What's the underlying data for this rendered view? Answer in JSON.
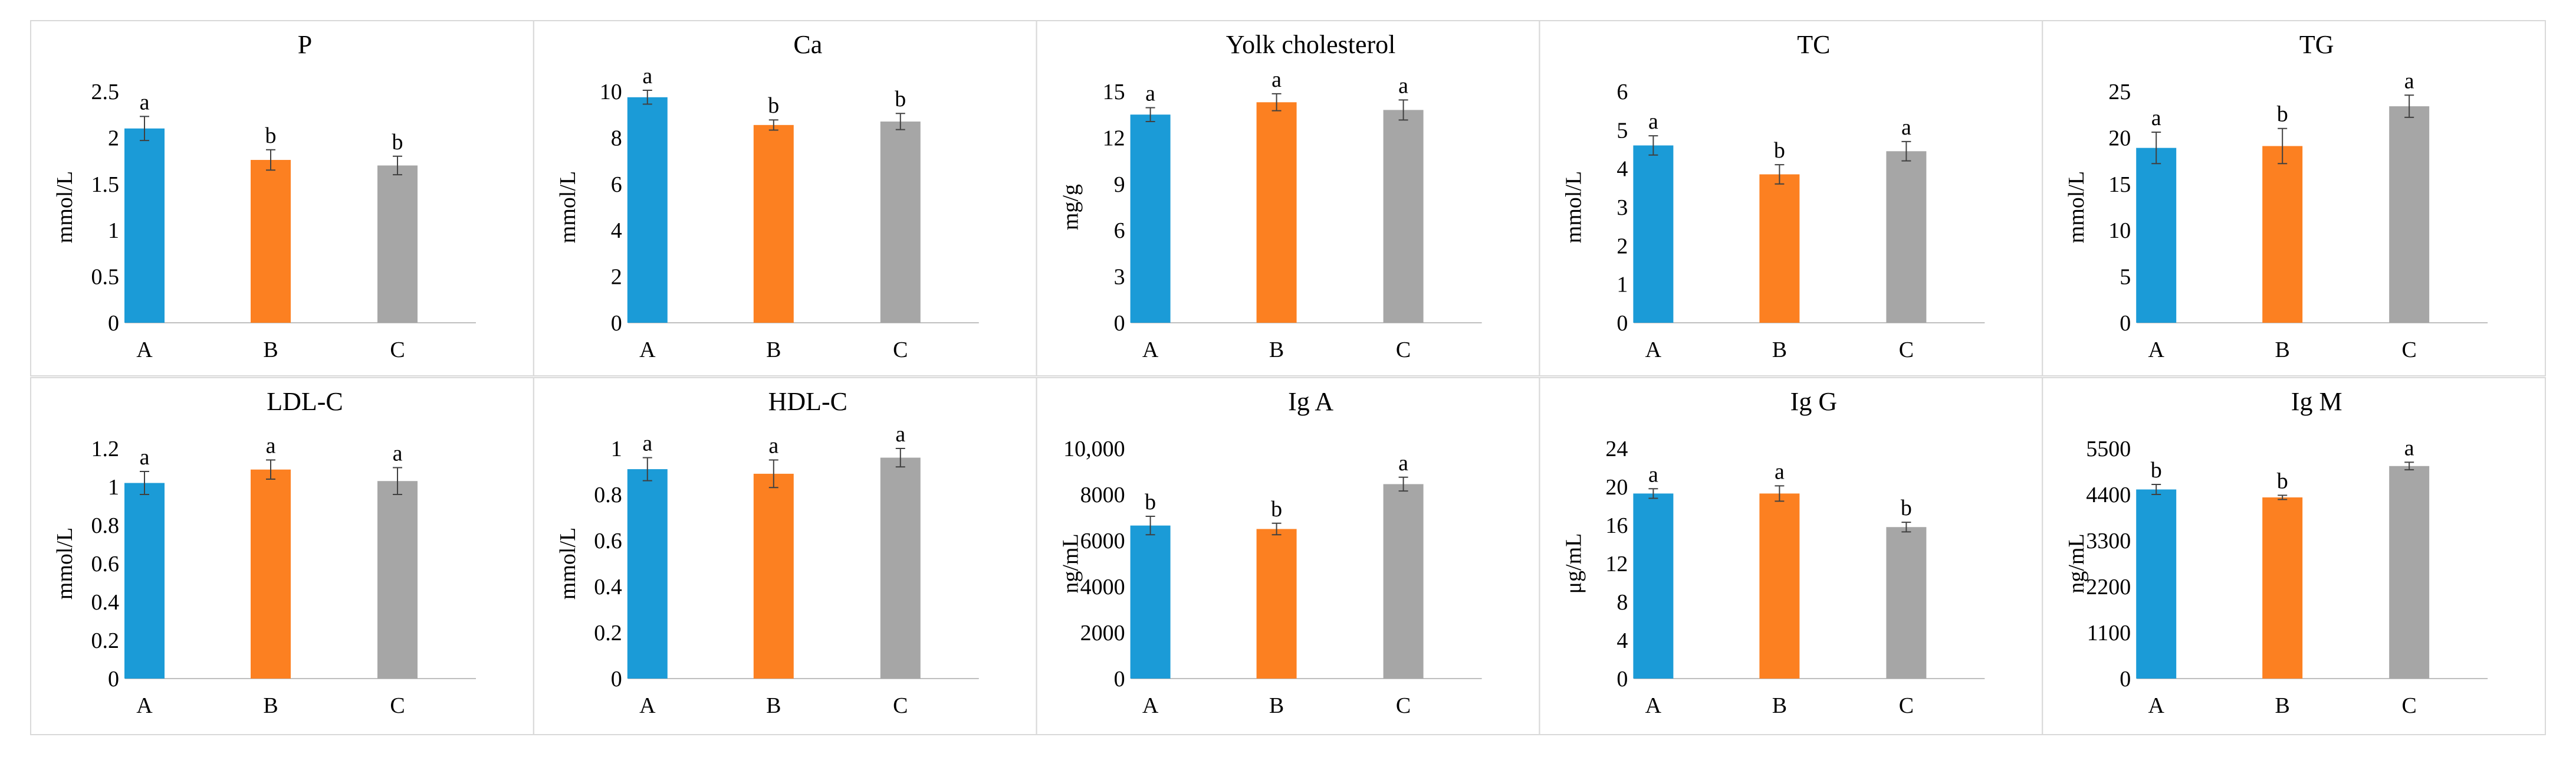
{
  "colors": {
    "A": "#1b9bd7",
    "B": "#fc8021",
    "C": "#a6a6a6",
    "error_bar": "#404040",
    "axis": "#bfbfbf",
    "border": "#d9d9d9"
  },
  "chart_data": [
    {
      "type": "bar",
      "title": "P",
      "ylabel": "mmol/L",
      "categories": [
        "A",
        "B",
        "C"
      ],
      "values": [
        2.1,
        1.76,
        1.7
      ],
      "errors": [
        0.13,
        0.11,
        0.1
      ],
      "letters": [
        "a",
        "b",
        "b"
      ],
      "ylim": [
        0,
        2.5
      ],
      "ticks": [
        "0",
        "0.5",
        "1",
        "1.5",
        "2",
        "2.5"
      ]
    },
    {
      "type": "bar",
      "title": "Ca",
      "ylabel": "mmol/L",
      "categories": [
        "A",
        "B",
        "C"
      ],
      "values": [
        9.75,
        8.55,
        8.7
      ],
      "errors": [
        0.3,
        0.22,
        0.35
      ],
      "letters": [
        "a",
        "b",
        "b"
      ],
      "ylim": [
        0,
        10
      ],
      "ticks": [
        "0",
        "2",
        "4",
        "6",
        "8",
        "10"
      ]
    },
    {
      "type": "bar",
      "title": "Yolk cholesterol",
      "ylabel": "mg/g",
      "categories": [
        "A",
        "B",
        "C"
      ],
      "values": [
        13.5,
        14.3,
        13.8
      ],
      "errors": [
        0.45,
        0.55,
        0.65
      ],
      "letters": [
        "a",
        "a",
        "a"
      ],
      "ylim": [
        0,
        15
      ],
      "ticks": [
        "0",
        "3",
        "6",
        "9",
        "12",
        "15"
      ]
    },
    {
      "type": "bar",
      "title": "TC",
      "ylabel": "mmol/L",
      "categories": [
        "A",
        "B",
        "C"
      ],
      "values": [
        4.6,
        3.85,
        4.45
      ],
      "errors": [
        0.25,
        0.25,
        0.25
      ],
      "letters": [
        "a",
        "b",
        "a"
      ],
      "ylim": [
        0,
        6
      ],
      "ticks": [
        "0",
        "1",
        "2",
        "3",
        "4",
        "5",
        "6"
      ]
    },
    {
      "type": "bar",
      "title": "TG",
      "ylabel": "mmol/L",
      "categories": [
        "A",
        "B",
        "C"
      ],
      "values": [
        18.9,
        19.1,
        23.4
      ],
      "errors": [
        1.7,
        1.9,
        1.2
      ],
      "letters": [
        "a",
        "b",
        "a"
      ],
      "ylim": [
        0,
        25
      ],
      "ticks": [
        "0",
        "5",
        "10",
        "15",
        "20",
        "25"
      ]
    },
    {
      "type": "bar",
      "title": "LDL-C",
      "ylabel": "mmol/L",
      "categories": [
        "A",
        "B",
        "C"
      ],
      "values": [
        1.02,
        1.09,
        1.03
      ],
      "errors": [
        0.06,
        0.05,
        0.07
      ],
      "letters": [
        "a",
        "a",
        "a"
      ],
      "ylim": [
        0,
        1.2
      ],
      "ticks": [
        "0",
        "0.2",
        "0.4",
        "0.6",
        "0.8",
        "1",
        "1.2"
      ]
    },
    {
      "type": "bar",
      "title": "HDL-C",
      "ylabel": "mmol/L",
      "categories": [
        "A",
        "B",
        "C"
      ],
      "values": [
        0.91,
        0.89,
        0.96
      ],
      "errors": [
        0.05,
        0.06,
        0.04
      ],
      "letters": [
        "a",
        "a",
        "a"
      ],
      "ylim": [
        0,
        1
      ],
      "ticks": [
        "0",
        "0.2",
        "0.4",
        "0.6",
        "0.8",
        "1"
      ]
    },
    {
      "type": "bar",
      "title": "Ig A",
      "ylabel": "ng/mL",
      "categories": [
        "A",
        "B",
        "C"
      ],
      "values": [
        6650,
        6500,
        8450
      ],
      "errors": [
        400,
        250,
        300
      ],
      "letters": [
        "b",
        "b",
        "a"
      ],
      "ylim": [
        0,
        10000
      ],
      "ticks": [
        "0",
        "2000",
        "4000",
        "6000",
        "8000",
        "10,000"
      ]
    },
    {
      "type": "bar",
      "title": "Ig G",
      "ylabel": "μg/mL",
      "categories": [
        "A",
        "B",
        "C"
      ],
      "values": [
        19.3,
        19.3,
        15.8
      ],
      "errors": [
        0.5,
        0.8,
        0.5
      ],
      "letters": [
        "a",
        "a",
        "b"
      ],
      "ylim": [
        0,
        24
      ],
      "ticks": [
        "0",
        "4",
        "8",
        "12",
        "16",
        "20",
        "24"
      ]
    },
    {
      "type": "bar",
      "title": "Ig M",
      "ylabel": "ng/mL",
      "categories": [
        "A",
        "B",
        "C"
      ],
      "values": [
        4520,
        4330,
        5080
      ],
      "errors": [
        120,
        50,
        90
      ],
      "letters": [
        "b",
        "b",
        "a"
      ],
      "ylim": [
        0,
        5500
      ],
      "ticks": [
        "0",
        "1100",
        "2200",
        "3300",
        "4400",
        "5500"
      ]
    }
  ]
}
